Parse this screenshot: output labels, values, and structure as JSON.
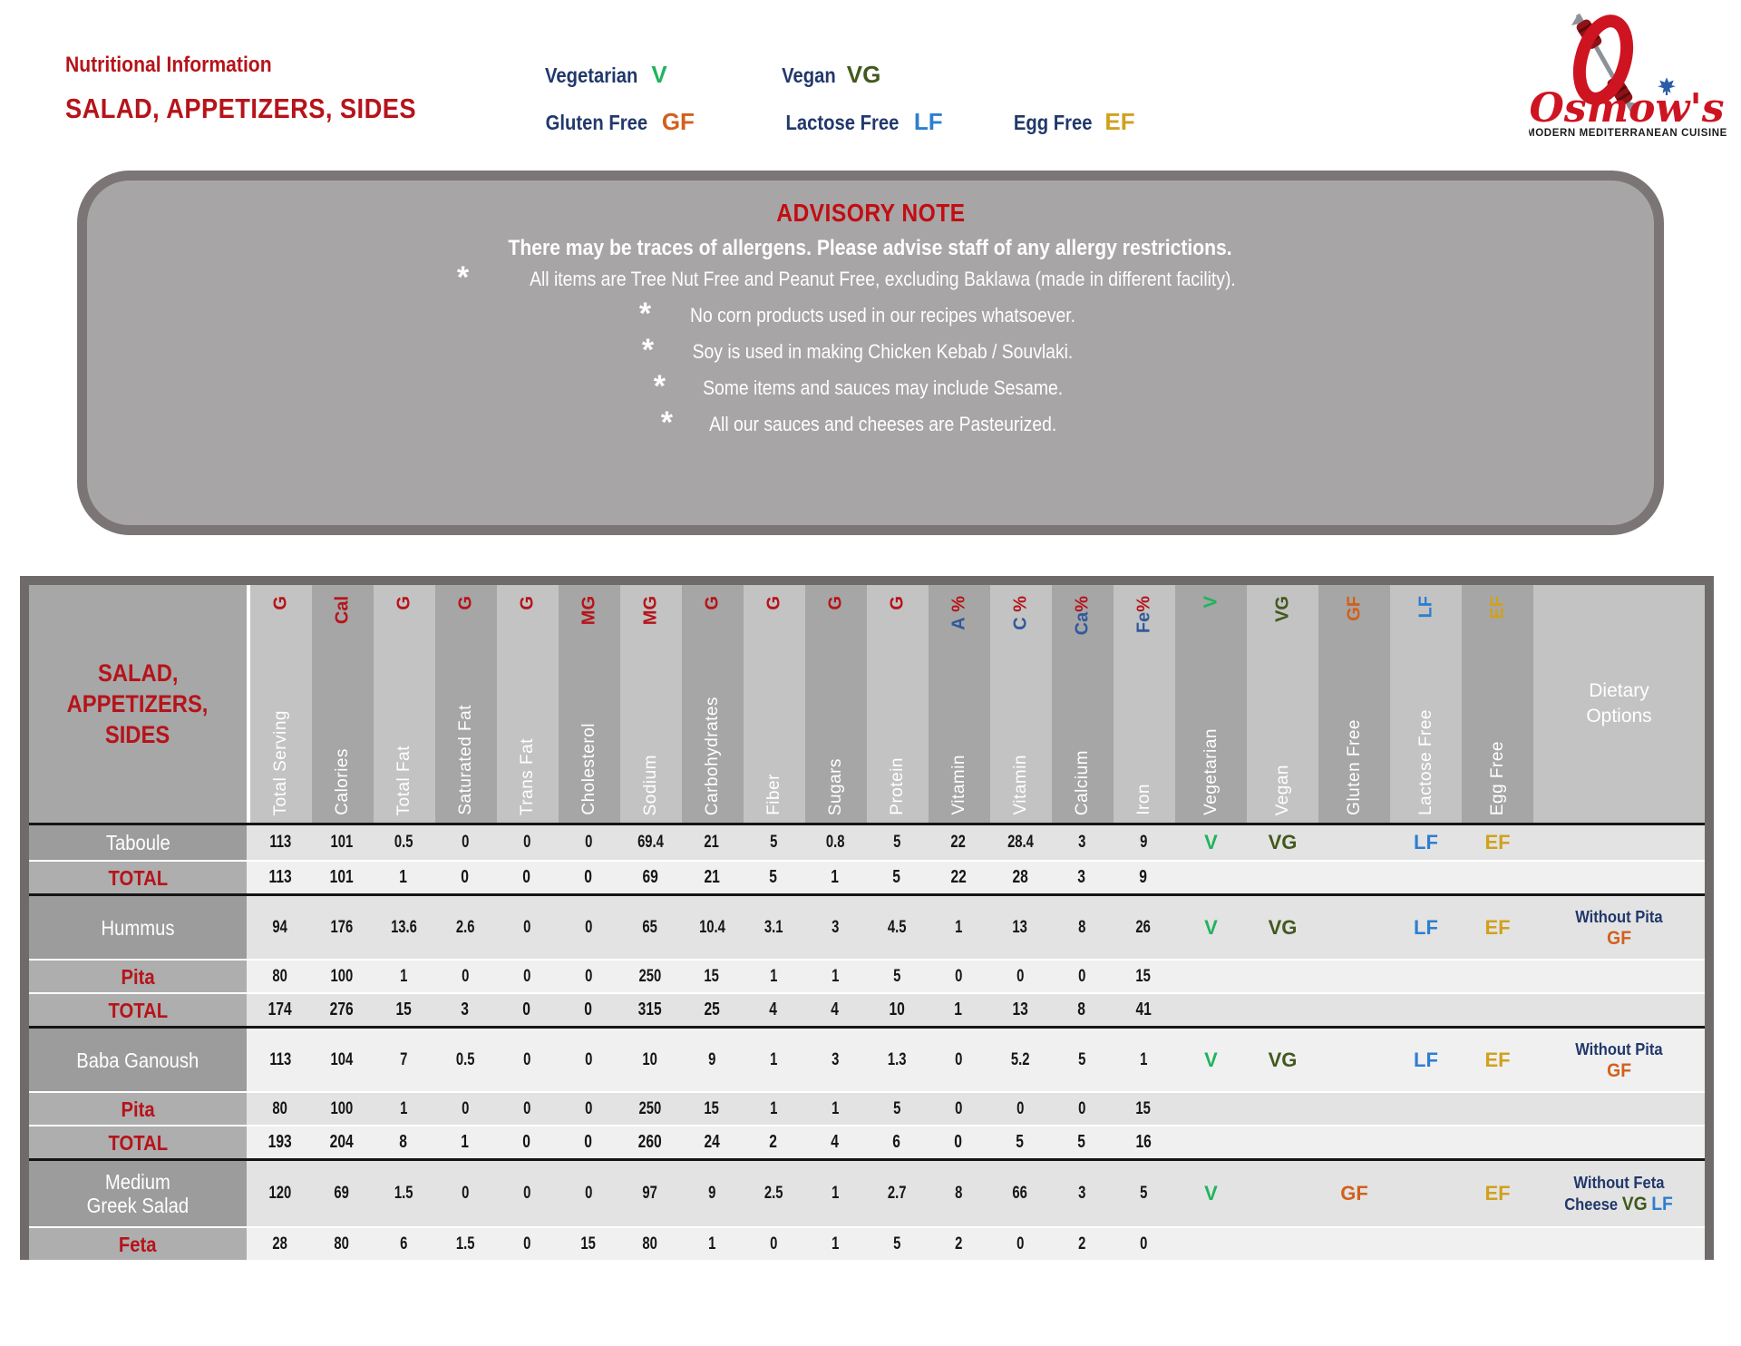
{
  "colors": {
    "red": "#b6131a",
    "advisory_red": "#c20d12",
    "navy": "#21386b",
    "v": "#1fb45c",
    "vg": "#42591d",
    "gf": "#d2601c",
    "lf": "#2e7ed0",
    "ef": "#d0a11d",
    "vit_blue": "#31599c",
    "logo_red": "#ce1421",
    "leaf_blue": "#2a5ca8"
  },
  "header": {
    "title": "Nutritional Information",
    "subtitle": "SALAD, APPETIZERS, SIDES"
  },
  "legend": {
    "items": [
      {
        "label": "Vegetarian",
        "code": "V",
        "color": "v"
      },
      {
        "label": "Vegan",
        "code": "VG",
        "color": "vg"
      },
      {
        "label": "Gluten Free",
        "code": "GF",
        "color": "gf"
      },
      {
        "label": "Lactose Free",
        "code": "LF",
        "color": "lf"
      },
      {
        "label": "Egg Free",
        "code": "EF",
        "color": "ef"
      }
    ]
  },
  "logo": {
    "brand": "Osmow's",
    "tagline": "MODERN MEDITERRANEAN CUISINE"
  },
  "advisory": {
    "title": "ADVISORY NOTE",
    "subtitle": "There may be traces of allergens. Please advise staff of any allergy restrictions.",
    "bullets": [
      "All items are Tree Nut Free and Peanut Free, excluding Baklawa (made in different facility).",
      "No corn products used in our recipes whatsoever.",
      "Soy is used in making Chicken Kebab / Souvlaki.",
      "Some items and sauces may include Sesame.",
      "All our sauces and cheeses are Pasteurized."
    ]
  },
  "table": {
    "title_lines": [
      "SALAD,",
      "APPETIZERS,",
      "SIDES"
    ],
    "dietary_options_header": "Dietary Options",
    "columns": [
      {
        "name": "Total Serving",
        "unit": "G"
      },
      {
        "name": "Calories",
        "unit": "Cal"
      },
      {
        "name": "Total Fat",
        "unit": "G"
      },
      {
        "name": "Saturated Fat",
        "unit": "G"
      },
      {
        "name": "Trans Fat",
        "unit": "G"
      },
      {
        "name": "Cholesterol",
        "unit": "MG"
      },
      {
        "name": "Sodium",
        "unit": "MG"
      },
      {
        "name": "Carbohydrates",
        "unit": "G"
      },
      {
        "name": "Fiber",
        "unit": "G"
      },
      {
        "name": "Sugars",
        "unit": "G"
      },
      {
        "name": "Protein",
        "unit": "G"
      },
      {
        "name": "Vitamin",
        "sym": "A",
        "pct": " %"
      },
      {
        "name": "Vitamin",
        "sym": "C",
        "pct": " %"
      },
      {
        "name": "Calcium",
        "sym": "Ca",
        "pct": "%"
      },
      {
        "name": "Iron",
        "sym": "Fe",
        "pct": "%"
      }
    ],
    "rows": [
      {
        "name": "Taboule",
        "type": "item",
        "values": [
          "113",
          "101",
          "0.5",
          "0",
          "0",
          "0",
          "69.4",
          "21",
          "5",
          "0.8",
          "5",
          "22",
          "28.4",
          "3",
          "9"
        ],
        "diet": [
          "V",
          "VG",
          "LF",
          "EF"
        ]
      },
      {
        "name": "TOTAL",
        "type": "total",
        "values": [
          "113",
          "101",
          "1",
          "0",
          "0",
          "0",
          "69",
          "21",
          "5",
          "1",
          "5",
          "22",
          "28",
          "3",
          "9"
        ]
      },
      {
        "name": "Hummus",
        "type": "item",
        "group_start": true,
        "values": [
          "94",
          "176",
          "13.6",
          "2.6",
          "0",
          "0",
          "65",
          "10.4",
          "3.1",
          "3",
          "4.5",
          "1",
          "13",
          "8",
          "26"
        ],
        "diet": [
          "V",
          "VG",
          "LF",
          "EF"
        ],
        "options_lines": [
          [
            {
              "t": "Without Pita",
              "c": "navy"
            }
          ],
          [
            {
              "t": "GF",
              "c": "gf",
              "big": true
            }
          ]
        ]
      },
      {
        "name": "Pita",
        "type": "sub",
        "values": [
          "80",
          "100",
          "1",
          "0",
          "0",
          "0",
          "250",
          "15",
          "1",
          "1",
          "5",
          "0",
          "0",
          "0",
          "15"
        ]
      },
      {
        "name": "TOTAL",
        "type": "total",
        "values": [
          "174",
          "276",
          "15",
          "3",
          "0",
          "0",
          "315",
          "25",
          "4",
          "4",
          "10",
          "1",
          "13",
          "8",
          "41"
        ]
      },
      {
        "name": "Baba Ganoush",
        "type": "item",
        "group_start": true,
        "values": [
          "113",
          "104",
          "7",
          "0.5",
          "0",
          "0",
          "10",
          "9",
          "1",
          "3",
          "1.3",
          "0",
          "5.2",
          "5",
          "1"
        ],
        "diet": [
          "V",
          "VG",
          "LF",
          "EF"
        ],
        "options_lines": [
          [
            {
              "t": "Without Pita",
              "c": "navy"
            }
          ],
          [
            {
              "t": "GF",
              "c": "gf",
              "big": true
            }
          ]
        ]
      },
      {
        "name": "Pita",
        "type": "sub",
        "values": [
          "80",
          "100",
          "1",
          "0",
          "0",
          "0",
          "250",
          "15",
          "1",
          "1",
          "5",
          "0",
          "0",
          "0",
          "15"
        ]
      },
      {
        "name": "TOTAL",
        "type": "total",
        "values": [
          "193",
          "204",
          "8",
          "1",
          "0",
          "0",
          "260",
          "24",
          "2",
          "4",
          "6",
          "0",
          "5",
          "5",
          "16"
        ]
      },
      {
        "name": "Medium Greek Salad",
        "name_lines": [
          "Medium",
          "Greek Salad"
        ],
        "type": "item",
        "group_start": true,
        "values": [
          "120",
          "69",
          "1.5",
          "0",
          "0",
          "0",
          "97",
          "9",
          "2.5",
          "1",
          "2.7",
          "8",
          "66",
          "3",
          "5"
        ],
        "diet": [
          "V",
          "GF",
          "EF"
        ],
        "options_lines": [
          [
            {
              "t": "Without Feta",
              "c": "navy"
            }
          ],
          [
            {
              "t": "Cheese ",
              "c": "navy"
            },
            {
              "t": "VG",
              "c": "vg",
              "big": true
            },
            {
              "t": " ",
              "c": "navy"
            },
            {
              "t": "LF",
              "c": "lf",
              "big": true
            }
          ]
        ]
      },
      {
        "name": "Feta",
        "type": "sub",
        "values": [
          "28",
          "80",
          "6",
          "1.5",
          "0",
          "15",
          "80",
          "1",
          "0",
          "1",
          "5",
          "2",
          "0",
          "2",
          "0"
        ]
      }
    ]
  }
}
